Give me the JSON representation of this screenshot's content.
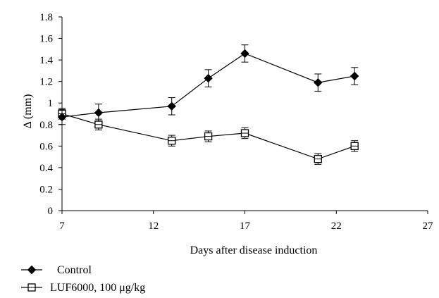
{
  "chart_data": {
    "type": "line",
    "xlabel": "Days after disease induction",
    "ylabel": "Δ (mm)",
    "xlim": [
      7,
      27
    ],
    "ylim": [
      0,
      1.8
    ],
    "xticks": [
      "7",
      "12",
      "17",
      "22",
      "27"
    ],
    "yticks": [
      "0",
      "0.2",
      "0.4",
      "0.6",
      "0.8",
      "1",
      "1.2",
      "1.4",
      "1.6",
      "1.8"
    ],
    "grid": false,
    "legend_position": "bottom-left",
    "series": [
      {
        "name": "Control",
        "marker": "filled-diamond",
        "color": "#000000",
        "x": [
          7,
          9,
          13,
          15,
          17,
          21,
          23
        ],
        "y": [
          0.87,
          0.91,
          0.97,
          1.23,
          1.46,
          1.19,
          1.25
        ],
        "err": [
          0.07,
          0.08,
          0.08,
          0.08,
          0.08,
          0.08,
          0.08
        ]
      },
      {
        "name": "LUF6000, 100 μg/kg",
        "marker": "open-square",
        "color": "#000000",
        "x": [
          7,
          9,
          13,
          15,
          17,
          21,
          23
        ],
        "y": [
          0.9,
          0.8,
          0.65,
          0.69,
          0.72,
          0.48,
          0.6
        ],
        "err": [
          0.05,
          0.05,
          0.05,
          0.05,
          0.05,
          0.05,
          0.05
        ]
      }
    ]
  }
}
